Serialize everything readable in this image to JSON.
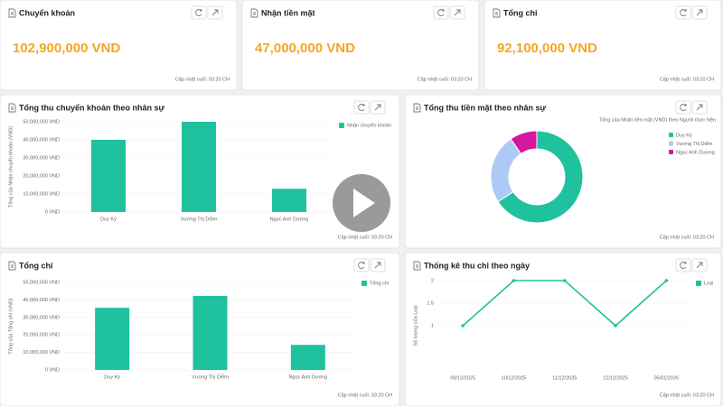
{
  "kpi_cards": [
    {
      "title": "Chuyển khoản",
      "value": "102,900,000 VND",
      "updated": "Cập nhật cuối: 03:20 CH"
    },
    {
      "title": "Nhận tiền mặt",
      "value": "47,000,000 VND",
      "updated": "Cập nhật cuối: 03:20 CH"
    },
    {
      "title": "Tổng chi",
      "value": "92,100,000 VND",
      "updated": "Cập nhật cuối: 03:20 CH"
    }
  ],
  "chart_data": [
    {
      "type": "bar",
      "title": "Tổng thu chuyển khoản theo nhân sự",
      "y_label": "Tổng của Nhận chuyển khoản (VND)",
      "categories": [
        "Duy Kỳ",
        "Vương Thị Diễm",
        "Ngọc Anh Dương"
      ],
      "series": [
        {
          "name": "Nhận chuyển khoản",
          "color": "#1fc19e",
          "values": [
            40000000,
            50000000,
            12900000
          ]
        }
      ],
      "ylim": [
        0,
        50000000
      ],
      "yticks": [
        {
          "value": 0,
          "label": "0 VND"
        },
        {
          "value": 10000000,
          "label": "10,000,000 VND"
        },
        {
          "value": 20000000,
          "label": "20,000,000 VND"
        },
        {
          "value": 30000000,
          "label": "30,000,000 VND"
        },
        {
          "value": 40000000,
          "label": "40,000,000 VND"
        },
        {
          "value": 50000000,
          "label": "50,000,000 VND"
        }
      ],
      "legend": "top-right",
      "updated": "Cập nhật cuối: 03:20 CH"
    },
    {
      "type": "pie",
      "donut": true,
      "title": "Tổng thu tiền mặt theo nhân sự",
      "subtitle": "Tổng của Nhận tiền mặt (VND) theo Người thực hiện",
      "categories": [
        "Duy Kỳ",
        "Vương Thị Diễm",
        "Ngọc Anh Dương"
      ],
      "values": [
        31000000,
        11500000,
        4500000
      ],
      "colors": [
        "#1fc19e",
        "#adc9f5",
        "#d5179c"
      ],
      "legend": "top-right",
      "updated": "Cập nhật cuối: 03:20 CH"
    },
    {
      "type": "bar",
      "title": "Tổng chi",
      "y_label": "Tổng của Tổng chi (VND)",
      "categories": [
        "Duy Kỳ",
        "Vương Thị Diễm",
        "Ngọc Anh Dương"
      ],
      "series": [
        {
          "name": "Tổng chi",
          "color": "#1fc19e",
          "values": [
            35500000,
            42300000,
            14300000
          ]
        }
      ],
      "ylim": [
        0,
        50000000
      ],
      "yticks": [
        {
          "value": 0,
          "label": "0 VND"
        },
        {
          "value": 10000000,
          "label": "10,000,000 VND"
        },
        {
          "value": 20000000,
          "label": "20,000,000 VND"
        },
        {
          "value": 30000000,
          "label": "30,000,000 VND"
        },
        {
          "value": 40000000,
          "label": "40,000,000 VND"
        },
        {
          "value": 50000000,
          "label": "50,000,000 VND"
        }
      ],
      "legend": "top-right",
      "updated": "Cập nhật cuối: 03:20 CH"
    },
    {
      "type": "line",
      "title": "Thống kê thu chi theo ngày",
      "y_label": "Số lượng của Loại",
      "categories": [
        "09/12/2025",
        "10/12/2025",
        "11/12/2025",
        "12/12/2025",
        "05/01/2026"
      ],
      "series": [
        {
          "name": "Loại",
          "color": "#1fc19e",
          "values": [
            1,
            2,
            2,
            1,
            2
          ]
        }
      ],
      "ylim": [
        0,
        2
      ],
      "yticks": [
        1,
        1.5,
        2
      ],
      "legend": "top-right",
      "updated": "Cập nhật cuối: 03:20 CH"
    }
  ]
}
